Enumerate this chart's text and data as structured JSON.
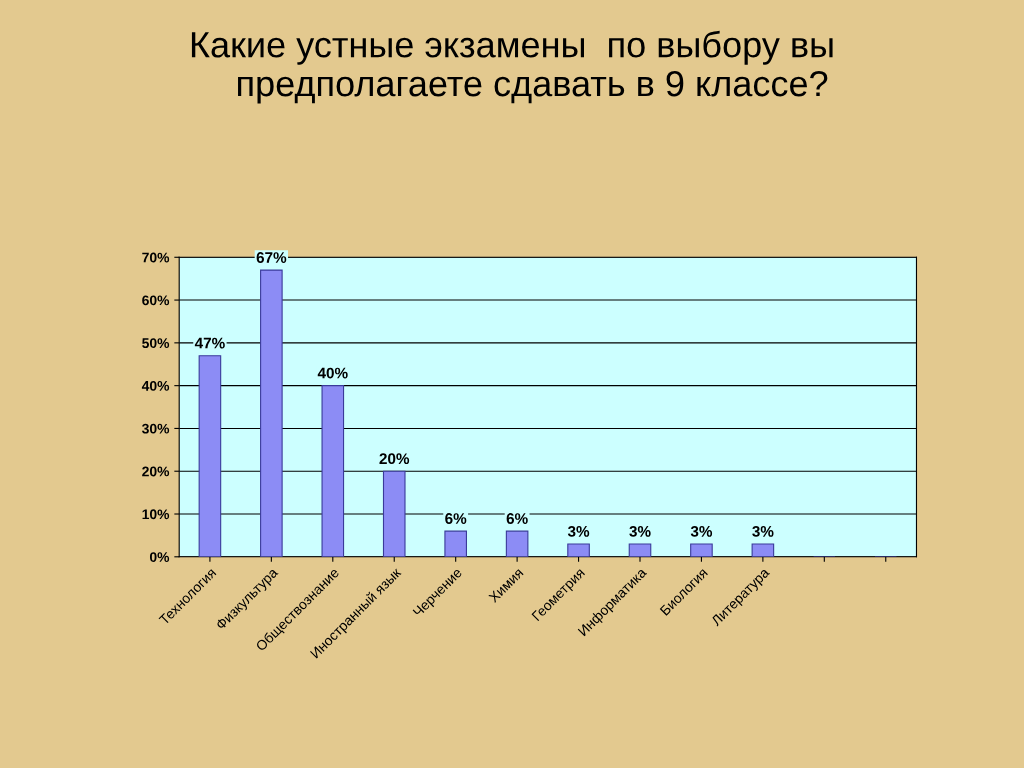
{
  "chart_data": {
    "type": "bar",
    "title": "Какие устные экзамены  по выбору вы\n    предполагаете сдавать в 9 классе?",
    "categories": [
      "Технология",
      "Физкультура",
      "Обществознание",
      "Иностранный язык",
      "Черчение",
      "Химия",
      "Геометрия",
      "Информатика",
      "Биология",
      "Литература",
      null,
      null
    ],
    "values": [
      47,
      67,
      40,
      20,
      6,
      6,
      3,
      3,
      3,
      3,
      null,
      null
    ],
    "value_labels": [
      "47%",
      "67%",
      "40%",
      "20%",
      "6%",
      "6%",
      "3%",
      "3%",
      "3%",
      "3%",
      null,
      null
    ],
    "color": "#8c8cf5",
    "ylim": [
      0,
      70
    ],
    "yticks": [
      {
        "value": 0,
        "label": "0%"
      },
      {
        "value": 10,
        "label": "10%"
      },
      {
        "value": 20,
        "label": "20%"
      },
      {
        "value": 30,
        "label": "30%"
      },
      {
        "value": 40,
        "label": "40%"
      },
      {
        "value": 50,
        "label": "50%"
      },
      {
        "value": 60,
        "label": "60%"
      },
      {
        "value": 70,
        "label": "70%"
      }
    ],
    "grid": "y"
  }
}
